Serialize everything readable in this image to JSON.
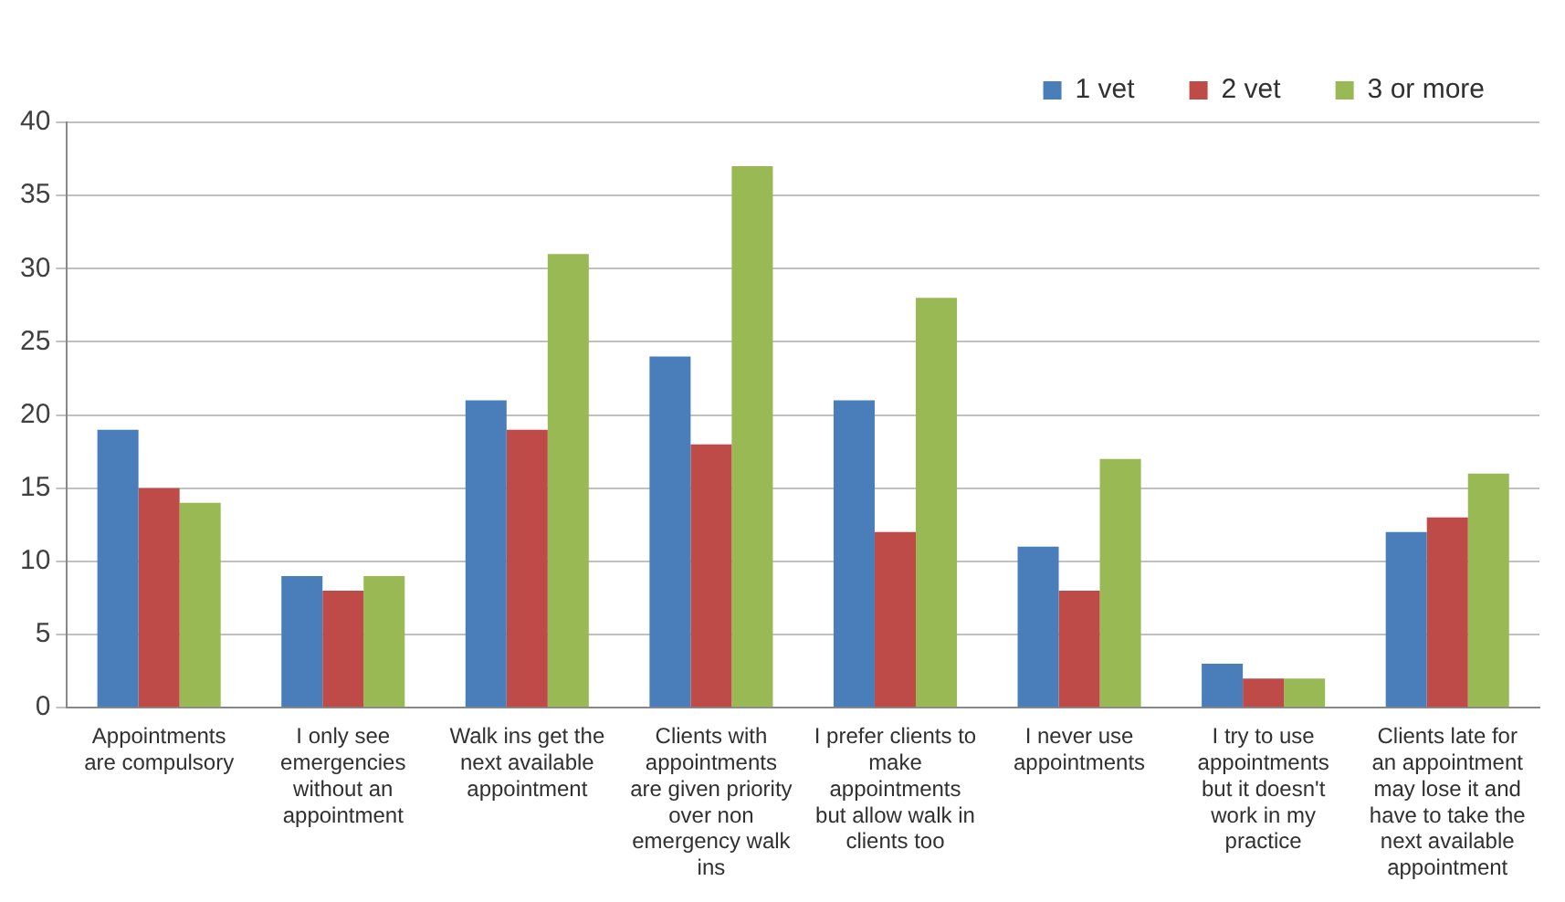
{
  "chart_data": {
    "type": "bar",
    "categories": [
      "Appointments are compulsory",
      "I only see emergencies without an appointment",
      "Walk ins get the next available appointment",
      "Clients with appointments are given priority over non emergency walk ins",
      "I prefer clients to make appointments but allow walk in clients too",
      "I never use appointments",
      "I try to use appointments but it doesn't work in my practice",
      "Clients late for an appointment may lose it and have to take the next available appointment"
    ],
    "series": [
      {
        "name": "1 vet",
        "color": "#4a7ebb",
        "values": [
          19,
          9,
          21,
          24,
          21,
          11,
          3,
          12
        ]
      },
      {
        "name": "2 vet",
        "color": "#be4b48",
        "values": [
          15,
          8,
          19,
          18,
          12,
          8,
          2,
          13
        ]
      },
      {
        "name": "3 or more",
        "color": "#98b954",
        "values": [
          14,
          9,
          31,
          37,
          28,
          17,
          2,
          16
        ]
      }
    ],
    "ylim": [
      0,
      40
    ],
    "yticks": [
      0,
      5,
      10,
      15,
      20,
      25,
      30,
      35,
      40
    ],
    "grid": "y",
    "legend": "top right"
  }
}
